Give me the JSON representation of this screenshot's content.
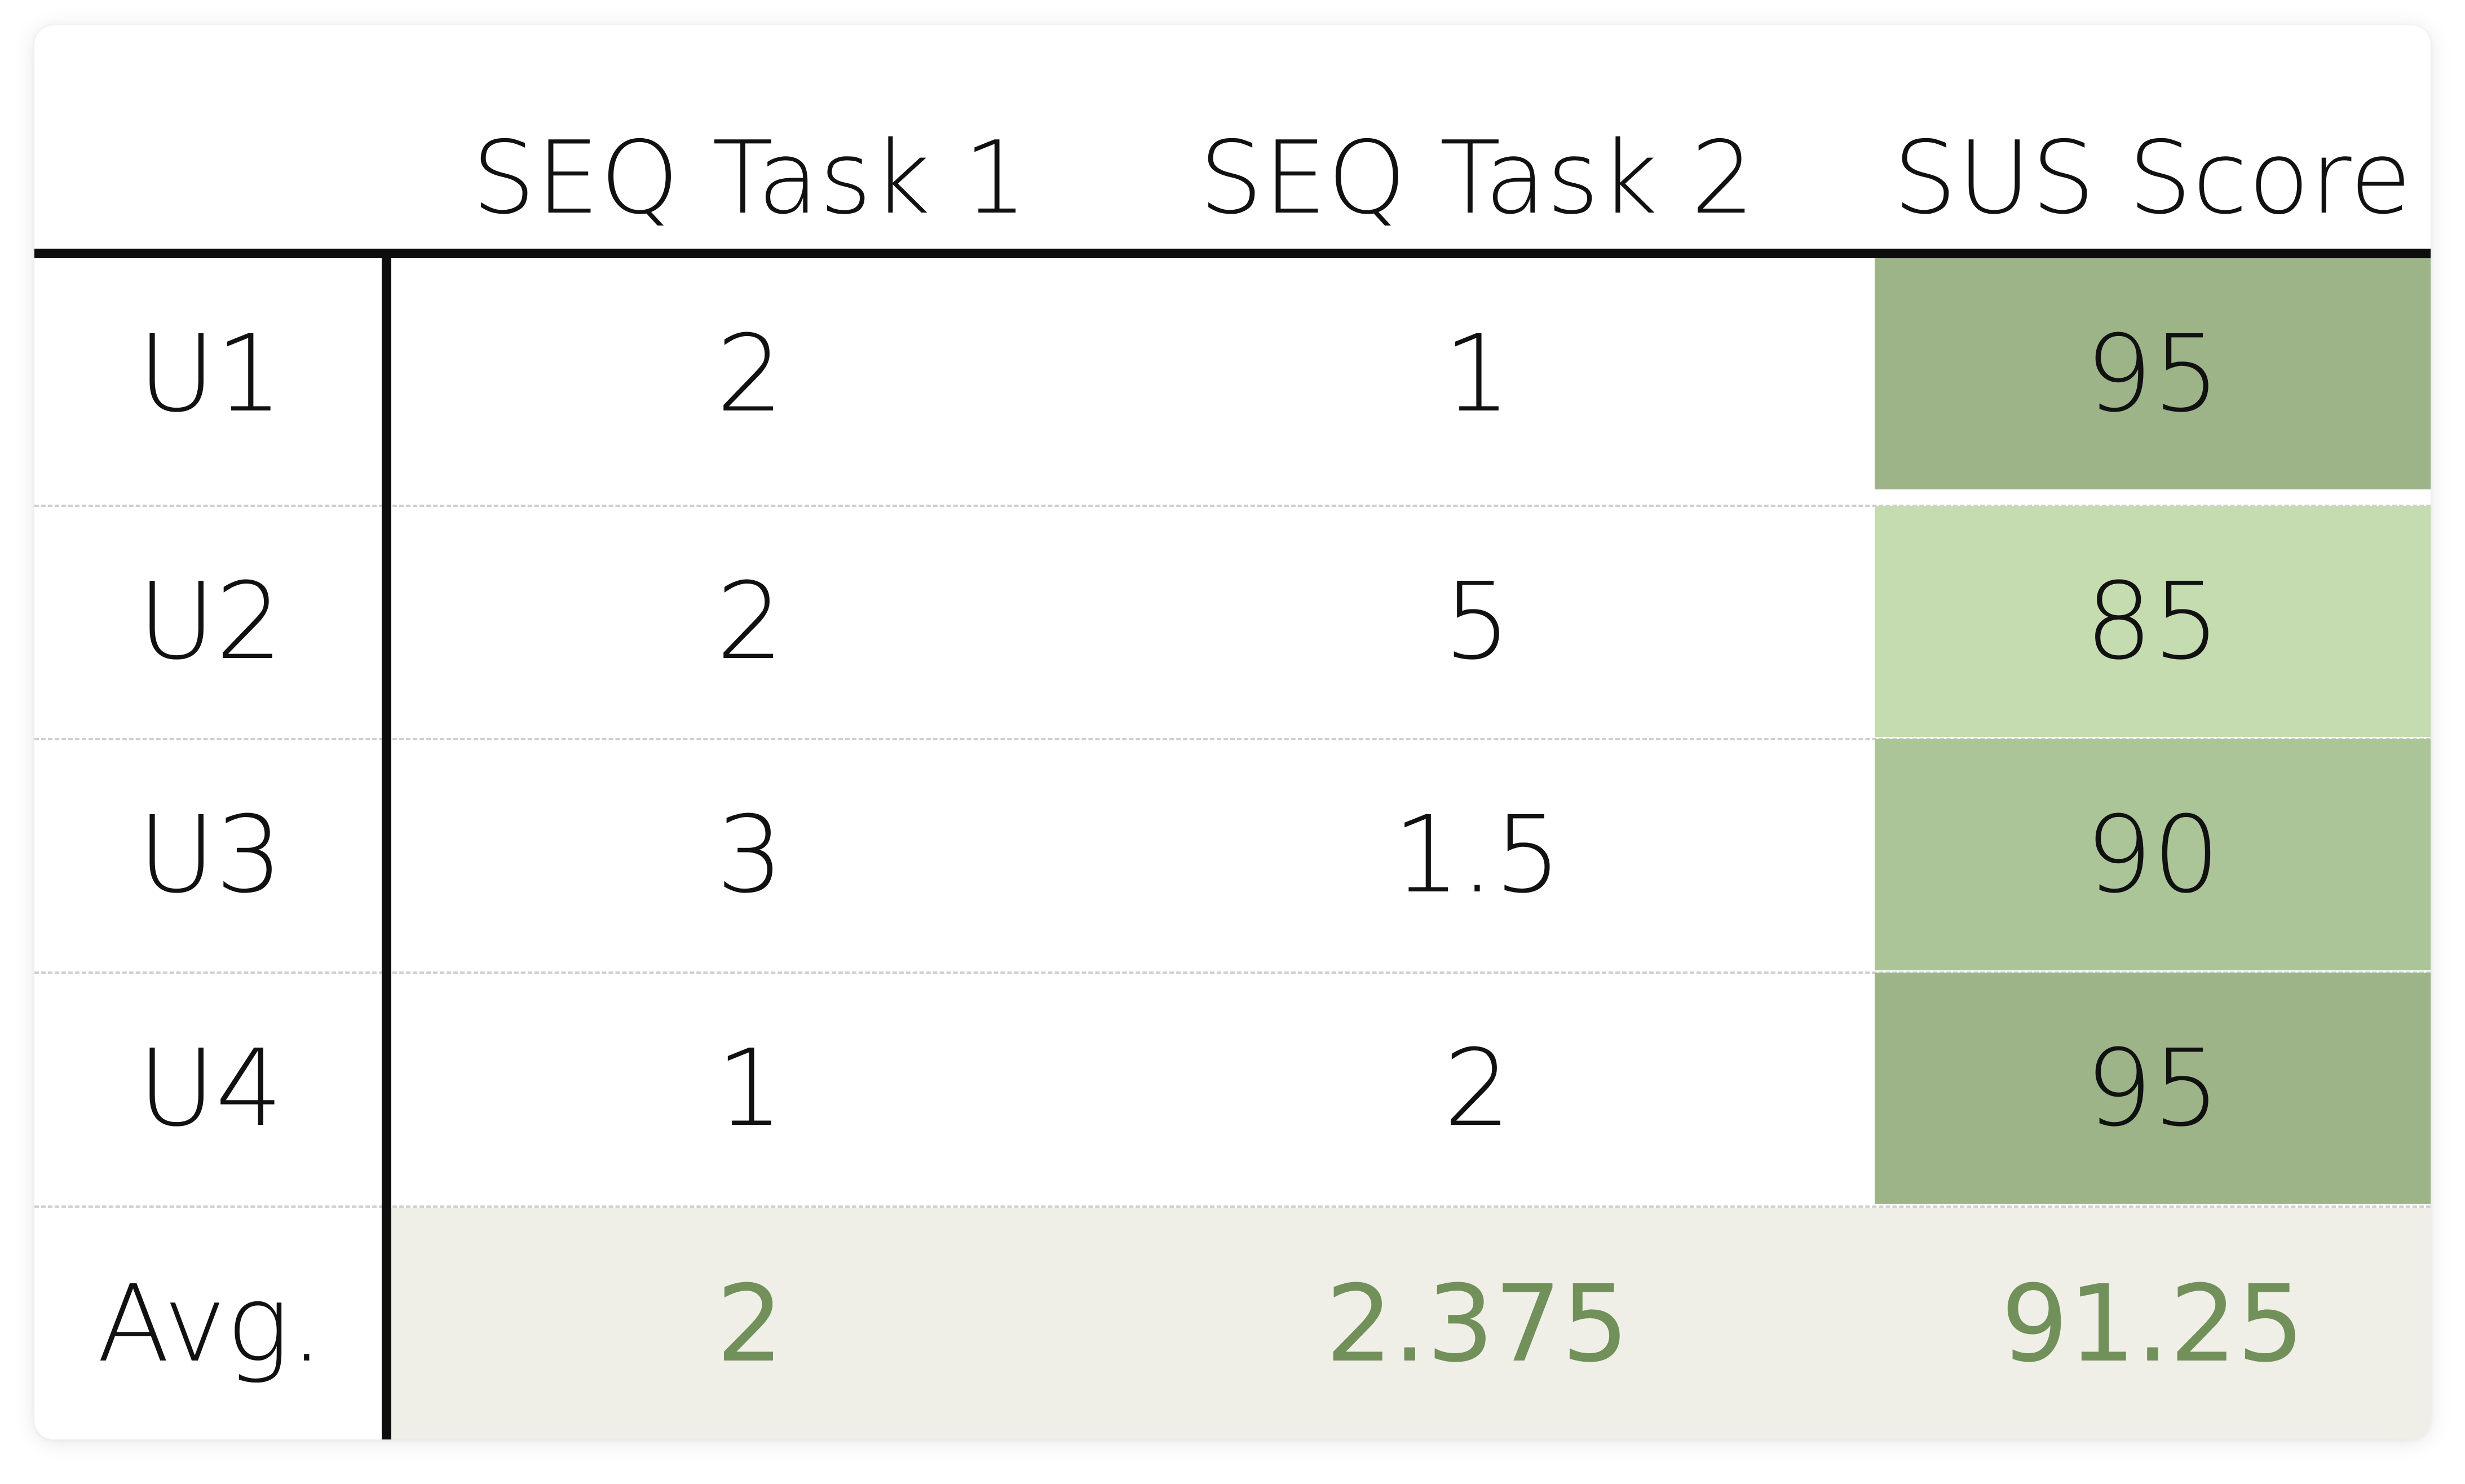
{
  "table": {
    "headers": [
      "",
      "SEQ Task 1",
      "SEQ Task 2",
      "SUS Score"
    ],
    "rows": [
      {
        "label": "U1",
        "seq1": "2",
        "seq2": "1",
        "sus": "95"
      },
      {
        "label": "U2",
        "seq1": "2",
        "seq2": "5",
        "sus": "85"
      },
      {
        "label": "U3",
        "seq1": "3",
        "seq2": "1.5",
        "sus": "90"
      },
      {
        "label": "U4",
        "seq1": "1",
        "seq2": "2",
        "sus": "95"
      }
    ],
    "average": {
      "label": "Avg.",
      "seq1": "2",
      "seq2": "2.375",
      "sus": "91.25"
    }
  },
  "colors": {
    "sus_95": "#9db488",
    "sus_85": "#c5dcb1",
    "sus_90": "#abc598",
    "avg_value": "#72905a",
    "avg_background": "#efefe8",
    "rule": "#0d0d0d"
  }
}
